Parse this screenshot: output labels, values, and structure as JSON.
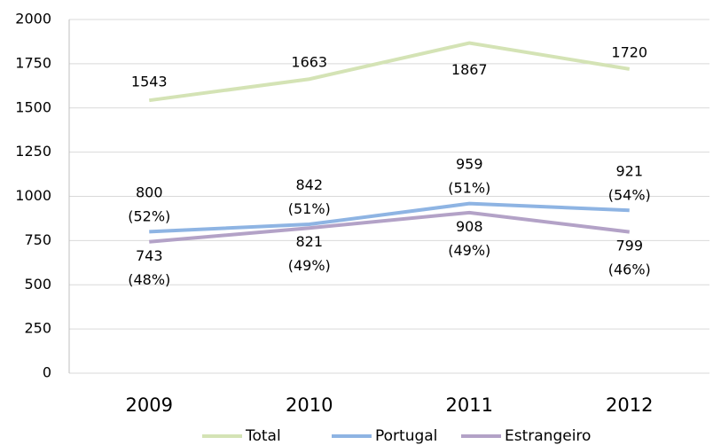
{
  "chart_data": {
    "type": "line",
    "categories": [
      "2009",
      "2010",
      "2011",
      "2012"
    ],
    "series": [
      {
        "name": "Total",
        "color": "#d4e3b5",
        "values": [
          1543,
          1663,
          1867,
          1720
        ]
      },
      {
        "name": "Portugal",
        "color": "#8eb4e3",
        "values": [
          800,
          842,
          959,
          921
        ],
        "value_labels": [
          "800 (52%)",
          "842 (51%)",
          "959 (51%)",
          "921 (54%)"
        ]
      },
      {
        "name": "Estrangeiro",
        "color": "#b3a2c7",
        "values": [
          743,
          821,
          908,
          799
        ],
        "value_labels": [
          "743 (48%)",
          "821 (49%)",
          "908 (49%)",
          "799 (46%)"
        ]
      }
    ],
    "ylim": [
      0,
      2000
    ],
    "yticks": [
      0,
      250,
      500,
      750,
      1000,
      1250,
      1500,
      1750,
      2000
    ],
    "grid": true,
    "legend": "bottom"
  }
}
